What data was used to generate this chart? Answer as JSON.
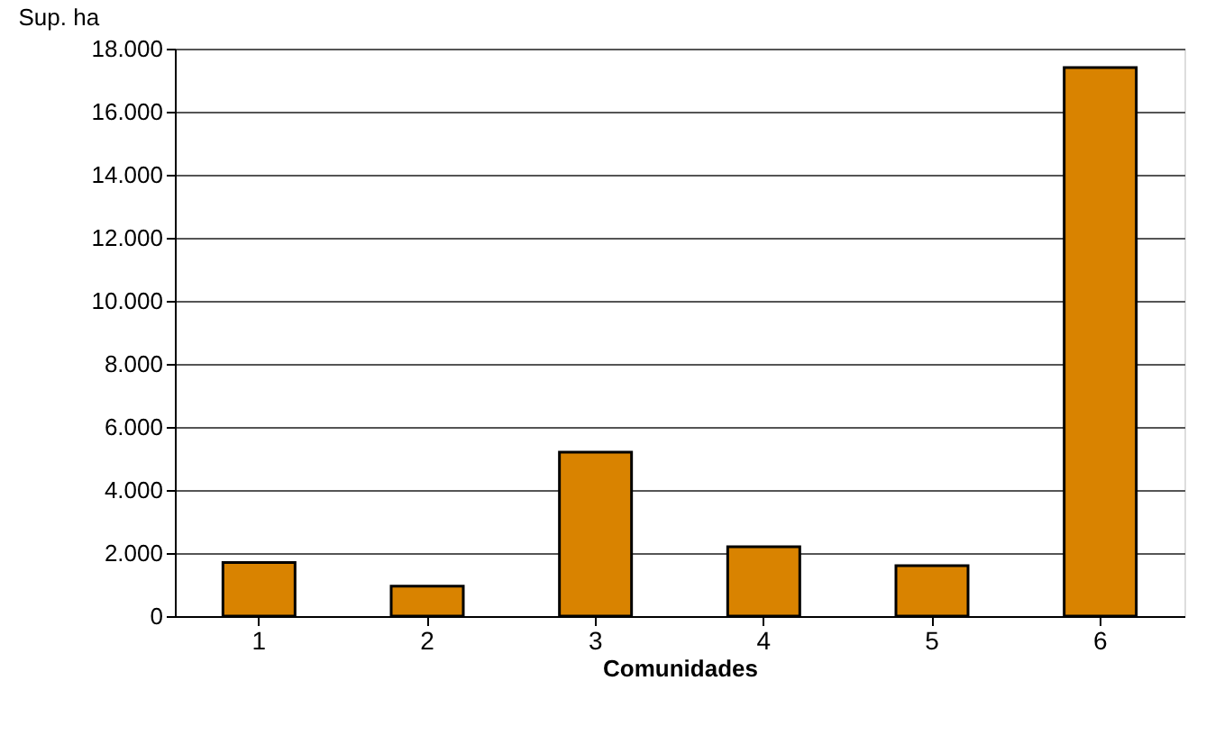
{
  "chart_data": {
    "type": "bar",
    "ylabel": "Sup. ha",
    "xlabel": "Comunidades",
    "categories": [
      "1",
      "2",
      "3",
      "4",
      "5",
      "6"
    ],
    "values": [
      1700,
      950,
      5200,
      2200,
      1600,
      17400
    ],
    "color": "#d98300",
    "ylim": [
      0,
      18000
    ],
    "yticks": [
      0,
      {
        "value": 2000,
        "label": "2.000"
      },
      {
        "value": 4000,
        "label": "4.000"
      },
      {
        "value": 6000,
        "label": "6.000"
      },
      {
        "value": 8000,
        "label": "8.000"
      },
      {
        "value": 10000,
        "label": "10.000"
      },
      {
        "value": 12000,
        "label": "12.000"
      },
      {
        "value": 14000,
        "label": "14.000"
      },
      {
        "value": 16000,
        "label": "16.000"
      },
      {
        "value": 18000,
        "label": "18.000"
      }
    ],
    "grid": "y"
  }
}
